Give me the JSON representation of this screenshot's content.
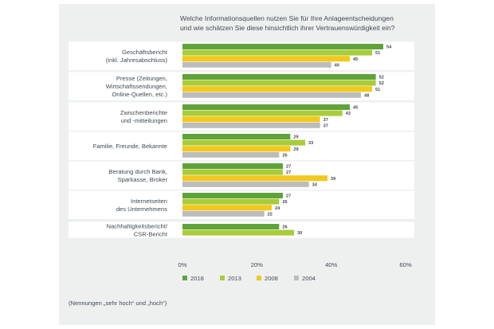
{
  "title_lines": [
    "Welche Informationsquellen nutzen Sie für Ihre Anlageentscheidungen",
    "und wie schätzen Sie diese hinsichtlich ihrer Vertrauenswürdigkeit ein?"
  ],
  "footnote": "(Nennungen „sehr hoch“ und „hoch“)",
  "chart_data": {
    "type": "bar",
    "orientation": "horizontal",
    "title": "Welche Informationsquellen nutzen Sie für Ihre Anlageentscheidungen und wie schätzen Sie diese hinsichtlich ihrer Vertrauenswürdigkeit ein?",
    "categories": [
      [
        "Geschäftsbericht",
        "(inkl. Jahresabschluss)"
      ],
      [
        "Presse (Zeitungen,",
        "Wirtschaftssendungen,",
        "Online-Quellen, etc.)"
      ],
      [
        "Zwischenberichte",
        "und -mitteilungen"
      ],
      [
        "Familie, Freunde, Bekannte"
      ],
      [
        "Beratung durch Bank,",
        "Sparkasse, Broker"
      ],
      [
        "Internetseiten",
        "des Unternehmens"
      ],
      [
        "Nachhaltigkeitsbericht/",
        "CSR-Bericht"
      ]
    ],
    "series": [
      {
        "name": "2018",
        "color": "#5fa33b",
        "values": [
          54,
          52,
          45,
          29,
          27,
          27,
          26
        ]
      },
      {
        "name": "2013",
        "color": "#a8cc3a",
        "values": [
          51,
          52,
          43,
          33,
          27,
          26,
          30
        ]
      },
      {
        "name": "2008",
        "color": "#f2c81c",
        "values": [
          45,
          51,
          37,
          29,
          39,
          24,
          null
        ]
      },
      {
        "name": "2004",
        "color": "#bcbcbc",
        "values": [
          40,
          48,
          37,
          26,
          34,
          22,
          null
        ]
      }
    ],
    "xlim": [
      0,
      60
    ],
    "xticks": [
      0,
      20,
      40,
      60
    ],
    "xtick_labels": [
      "0%",
      "20%",
      "40%",
      "60%"
    ],
    "xlabel": "",
    "ylabel": "",
    "legend_position": "bottom",
    "grid": false
  }
}
